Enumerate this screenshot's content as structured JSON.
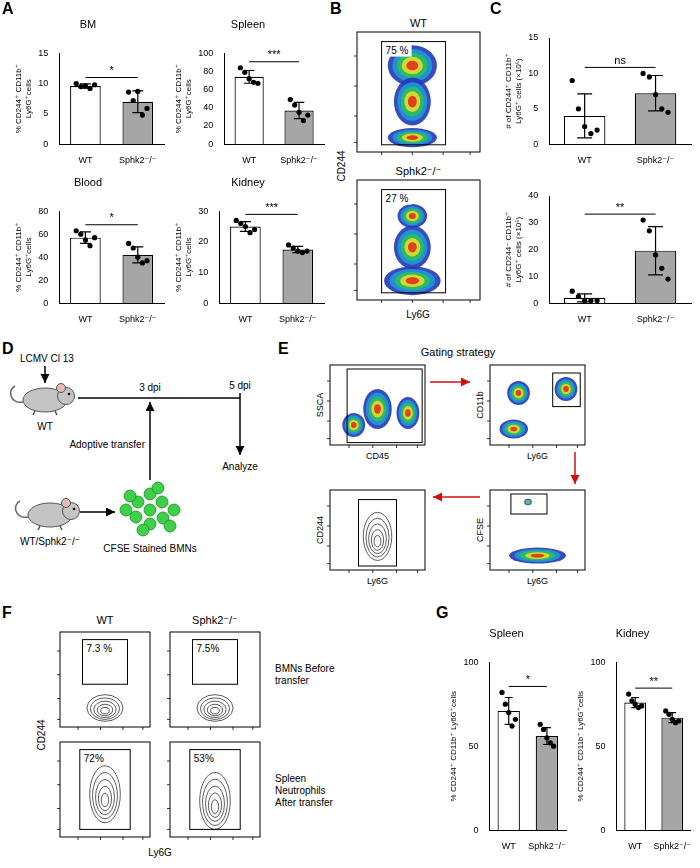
{
  "chart_data": [
    {
      "panel": "A",
      "type": "bar",
      "title": "BM",
      "categories": [
        "WT",
        "Sphk2⁻/⁻"
      ],
      "values": [
        9.6,
        7.0
      ],
      "errors": [
        0.35,
        1.8
      ],
      "points": [
        [
          10.0,
          9.5,
          9.6,
          9.2,
          9.8
        ],
        [
          8.6,
          7.2,
          8.7,
          4.8,
          5.9
        ]
      ],
      "colors": [
        "#ffffff",
        "#a6a6a6"
      ],
      "y_label": "% CD244⁺ CD11b⁺ Ly6G⁺cells",
      "ylim": [
        0,
        15
      ],
      "yticks": [
        0,
        5,
        10,
        15
      ],
      "significance": "*",
      "grid": false
    },
    {
      "panel": "A",
      "type": "bar",
      "title": "Spleen",
      "categories": [
        "WT",
        "Sphk2⁻/⁻"
      ],
      "values": [
        74,
        37
      ],
      "errors": [
        7,
        9
      ],
      "points": [
        [
          84,
          79,
          72,
          68,
          67
        ],
        [
          49,
          43,
          35,
          26,
          32
        ]
      ],
      "colors": [
        "#ffffff",
        "#a6a6a6"
      ],
      "y_label": "% CD244⁺ CD11b⁺ Ly6G⁺cells",
      "ylim": [
        0,
        100
      ],
      "yticks": [
        0,
        20,
        40,
        60,
        80,
        100
      ],
      "significance": "***",
      "grid": false
    },
    {
      "panel": "A",
      "type": "bar",
      "title": "Blood",
      "categories": [
        "WT",
        "Sphk2⁻/⁻"
      ],
      "values": [
        57,
        42
      ],
      "errors": [
        5,
        7
      ],
      "points": [
        [
          63,
          60,
          55,
          50,
          57
        ],
        [
          52,
          48,
          40,
          35,
          37
        ]
      ],
      "colors": [
        "#ffffff",
        "#a6a6a6"
      ],
      "y_label": "% CD244⁺ CD11b⁺ Ly6G⁺cells",
      "ylim": [
        0,
        80
      ],
      "yticks": [
        0,
        20,
        40,
        60,
        80
      ],
      "significance": "*",
      "grid": false
    },
    {
      "panel": "A",
      "type": "bar",
      "title": "Kidney",
      "categories": [
        "WT",
        "Sphk2⁻/⁻"
      ],
      "values": [
        25,
        17.5
      ],
      "errors": [
        1.6,
        1
      ],
      "points": [
        [
          27,
          26,
          25,
          23,
          24
        ],
        [
          19,
          18,
          17,
          16.5,
          17
        ]
      ],
      "colors": [
        "#ffffff",
        "#a6a6a6"
      ],
      "y_label": "% CD244⁺ CD11b⁺ Ly6G⁺cells",
      "ylim": [
        0,
        30
      ],
      "yticks": [
        0,
        10,
        20,
        30
      ],
      "significance": "***",
      "grid": false
    },
    {
      "panel": "C",
      "type": "bar",
      "categories": [
        "WT",
        "Sphk2⁻/⁻"
      ],
      "values": [
        4,
        7.2
      ],
      "errors": [
        3.1,
        2.5
      ],
      "points": [
        [
          9,
          5,
          2.5,
          1.5,
          2
        ],
        [
          10,
          9.5,
          7,
          5,
          4.5
        ]
      ],
      "colors": [
        "#ffffff",
        "#a6a6a6"
      ],
      "y_label": "# of CD244⁺ CD11b⁺ Ly6G⁺ cells (×10⁵)",
      "ylim": [
        0,
        15
      ],
      "yticks": [
        0,
        5,
        10,
        15
      ],
      "significance": "ns",
      "grid": false
    },
    {
      "panel": "C",
      "type": "bar",
      "categories": [
        "WT",
        "Sphk2⁻/⁻"
      ],
      "values": [
        2,
        19.6
      ],
      "errors": [
        1.5,
        9
      ],
      "points": [
        [
          4.5,
          2.5,
          1,
          1,
          1
        ],
        [
          31,
          27,
          18,
          13,
          9
        ]
      ],
      "colors": [
        "#ffffff",
        "#a6a6a6"
      ],
      "y_label": "# of CD244⁻ CD11b⁺ Ly6G⁺ cells (×10⁵)",
      "ylim": [
        0,
        40
      ],
      "yticks": [
        0,
        10,
        20,
        30,
        40
      ],
      "significance": "**",
      "grid": false
    },
    {
      "panel": "G",
      "type": "bar",
      "title": "Spleen",
      "categories": [
        "WT",
        "Sphk2⁻/⁻"
      ],
      "values": [
        71,
        56
      ],
      "errors": [
        8,
        5
      ],
      "points": [
        [
          82,
          75,
          70,
          62,
          66
        ],
        [
          63,
          60,
          55,
          52,
          50
        ]
      ],
      "colors": [
        "#ffffff",
        "#a6a6a6"
      ],
      "y_label": "% CD244⁺ CD11b⁺ Ly6G⁺cells",
      "ylim": [
        0,
        100
      ],
      "yticks": [
        0,
        50,
        100
      ],
      "significance": "*",
      "grid": false
    },
    {
      "panel": "G",
      "type": "bar",
      "title": "Kidney",
      "categories": [
        "WT",
        "Sphk2⁻/⁻"
      ],
      "values": [
        76,
        67
      ],
      "errors": [
        3,
        3
      ],
      "points": [
        [
          81,
          77,
          75,
          73,
          74
        ],
        [
          71,
          69,
          66,
          64,
          65
        ]
      ],
      "colors": [
        "#ffffff",
        "#a6a6a6"
      ],
      "y_label": "% CD244⁺ CD11b⁺ Ly6G⁺cells",
      "ylim": [
        0,
        100
      ],
      "yticks": [
        0,
        50,
        100
      ],
      "significance": "**",
      "grid": false
    }
  ],
  "panel_B": {
    "letter": "B",
    "x_label": "Ly6G",
    "y_label": "CD244",
    "plots": [
      {
        "title": "WT",
        "gate_label": "75 %"
      },
      {
        "title": "Sphk2⁻/⁻",
        "gate_label": "27 %"
      }
    ]
  },
  "panel_D": {
    "letter": "D",
    "infection": "LCMV Cl 13",
    "host": "WT",
    "donor": "WT/Sphk2⁻/⁻",
    "transfer_time": "3 dpi",
    "transfer": "Adoptive transfer",
    "analysis_time": "5 dpi",
    "analysis": "Analyze",
    "cells": "CFSE Stained BMNs"
  },
  "panel_E": {
    "letter": "E",
    "title": "Gating strategy",
    "plots": [
      {
        "x_label": "CD45",
        "y_label": "SSCA"
      },
      {
        "x_label": "Ly6G",
        "y_label": "CD11b"
      },
      {
        "x_label": "Ly6G",
        "y_label": "CFSE"
      },
      {
        "x_label": "Ly6G",
        "y_label": "CD244"
      }
    ]
  },
  "panel_F": {
    "letter": "F",
    "x_label": "Ly6G",
    "y_label": "CD244",
    "columns": [
      "WT",
      "Sphk2⁻/⁻"
    ],
    "rows": [
      {
        "label": "BMNs Before transfer",
        "gate_labels": [
          "7.3 %",
          "7.5%"
        ]
      },
      {
        "label": "Spleen Neutrophils After transfer",
        "gate_labels": [
          "72%",
          "53%"
        ]
      }
    ]
  }
}
